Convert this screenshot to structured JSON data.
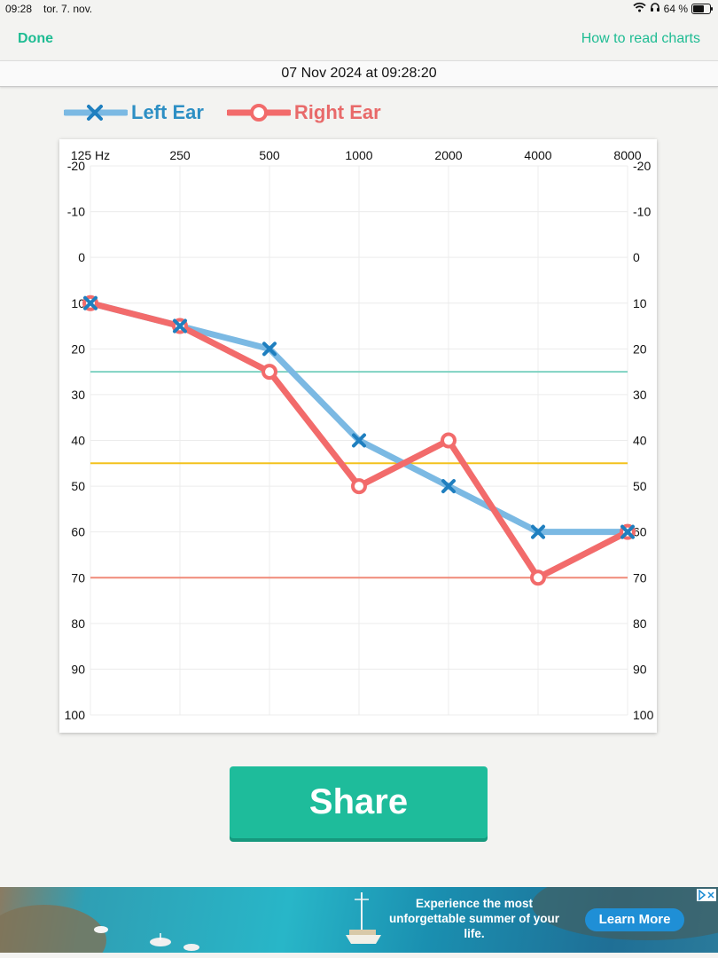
{
  "status_bar": {
    "time": "09:28",
    "date": "tor. 7. nov.",
    "battery": "64 %",
    "battery_level": 0.64
  },
  "nav": {
    "done_label": "Done",
    "help_label": "How to read charts"
  },
  "timestamp": "07 Nov 2024 at 09:28:20",
  "legend": [
    {
      "name": "Left Ear",
      "color": "#2d8fc4",
      "line_color": "#7bb9e3",
      "marker": "x"
    },
    {
      "name": "Right Ear",
      "color": "#e86a6a",
      "line_color": "#f26b6b",
      "marker": "o"
    }
  ],
  "chart_data": {
    "type": "line",
    "x": [
      "125 Hz",
      "250",
      "500",
      "1000",
      "2000",
      "4000",
      "8000"
    ],
    "y_ticks": [
      -20,
      -10,
      0,
      10,
      20,
      30,
      40,
      50,
      60,
      70,
      80,
      90,
      100
    ],
    "ylim": [
      -20,
      100
    ],
    "y_inverted": true,
    "grid": true,
    "series": [
      {
        "name": "Left Ear",
        "values": [
          10,
          15,
          20,
          40,
          50,
          60,
          60
        ],
        "color": "#7bb9e3",
        "marker": "x",
        "marker_color": "#1f7fbf"
      },
      {
        "name": "Right Ear",
        "values": [
          10,
          15,
          25,
          50,
          40,
          70,
          60
        ],
        "color": "#f26b6b",
        "marker": "o",
        "marker_color": "#f26b6b"
      }
    ],
    "reference_lines": [
      {
        "value": 25,
        "color": "#7fd3c2"
      },
      {
        "value": 45,
        "color": "#f3c21d"
      },
      {
        "value": 70,
        "color": "#f08a78"
      }
    ]
  },
  "share_label": "Share",
  "ad": {
    "text": "Experience the most unforgettable summer of your life.",
    "cta": "Learn More",
    "choices_icon": "ad-choices-icon"
  }
}
